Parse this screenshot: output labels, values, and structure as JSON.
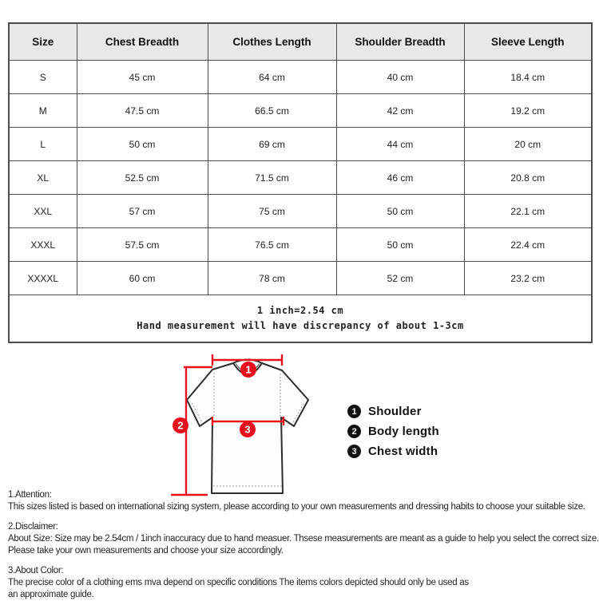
{
  "table": {
    "headers": [
      "Size",
      "Chest Breadth",
      "Clothes Length",
      "Shoulder Breadth",
      "Sleeve Length"
    ],
    "rows": [
      [
        "S",
        "45 cm",
        "64 cm",
        "40 cm",
        "18.4 cm"
      ],
      [
        "M",
        "47.5 cm",
        "66.5 cm",
        "42 cm",
        "19.2 cm"
      ],
      [
        "L",
        "50 cm",
        "69 cm",
        "44 cm",
        "20 cm"
      ],
      [
        "XL",
        "52.5 cm",
        "71.5 cm",
        "46 cm",
        "20.8 cm"
      ],
      [
        "XXL",
        "57 cm",
        "75 cm",
        "50 cm",
        "22.1 cm"
      ],
      [
        "XXXL",
        "57.5 cm",
        "76.5 cm",
        "50 cm",
        "22.4 cm"
      ],
      [
        "XXXXL",
        "60 cm",
        "78 cm",
        "52 cm",
        "23.2 cm"
      ]
    ],
    "note_line1": "1 inch=2.54 cm",
    "note_line2": "Hand measurement will have discrepancy of about 1-3cm"
  },
  "diagram": {
    "legend": [
      {
        "num": "1",
        "label": "Shoulder"
      },
      {
        "num": "2",
        "label": "Body length"
      },
      {
        "num": "3",
        "label": "Chest width"
      }
    ]
  },
  "notes": {
    "sections": [
      {
        "title": "1.Attention:",
        "lines": [
          "This sizes listed is based on international sizing system, please according to your own measurements and dressing habits to choose your suitable size."
        ]
      },
      {
        "title": "2.Disclaimer:",
        "lines": [
          "About Size: Size may be 2.54cm / 1inch inaccuracy due to hand measuer. Thsese measurements are meant as a guide to help you select the correct size.",
          "Please take your own measurements and choose your size accordingly."
        ]
      },
      {
        "title": "3.About Color:",
        "lines": [
          "The precise color of a clothing ems mva depend on specific conditions The items colors depicted should only be used as",
          "an approximate guide."
        ]
      }
    ]
  },
  "colors": {
    "accent_red": "#e8101e",
    "header_bg": "#e8e8e6",
    "table_border": "#4d4d4d"
  }
}
